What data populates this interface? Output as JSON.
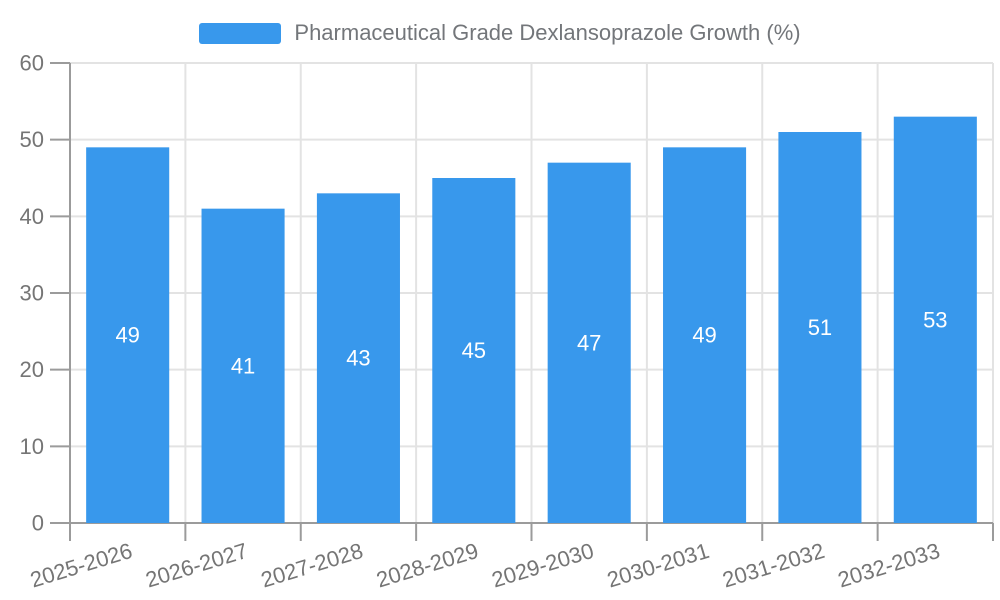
{
  "legend": {
    "label": "Pharmaceutical Grade Dexlansoprazole Growth (%)"
  },
  "chart_data": {
    "type": "bar",
    "title": "Pharmaceutical Grade Dexlansoprazole Growth (%)",
    "categories": [
      "2025-2026",
      "2026-2027",
      "2027-2028",
      "2028-2029",
      "2029-2030",
      "2030-2031",
      "2031-2032",
      "2032-2033"
    ],
    "values": [
      49,
      41,
      43,
      45,
      47,
      49,
      51,
      53
    ],
    "value_labels": [
      "49",
      "41",
      "43",
      "45",
      "47",
      "49",
      "51",
      "53"
    ],
    "ytick_labels": [
      "0",
      "10",
      "20",
      "30",
      "40",
      "50",
      "60"
    ],
    "yticks": [
      0,
      10,
      20,
      30,
      40,
      50,
      60
    ],
    "ylim": [
      0,
      60
    ],
    "xlabel": "",
    "ylabel": "",
    "grid": true,
    "legend_position": "top-center",
    "x_label_rotation_deg": -17,
    "colors": {
      "bar": "#3898EC",
      "value_label": "#ffffff",
      "grid_line": "#E3E3E3",
      "axis_line": "#9B9B9B",
      "tick_label": "#757575",
      "legend_text": "#73767a",
      "background": "#ffffff"
    }
  }
}
